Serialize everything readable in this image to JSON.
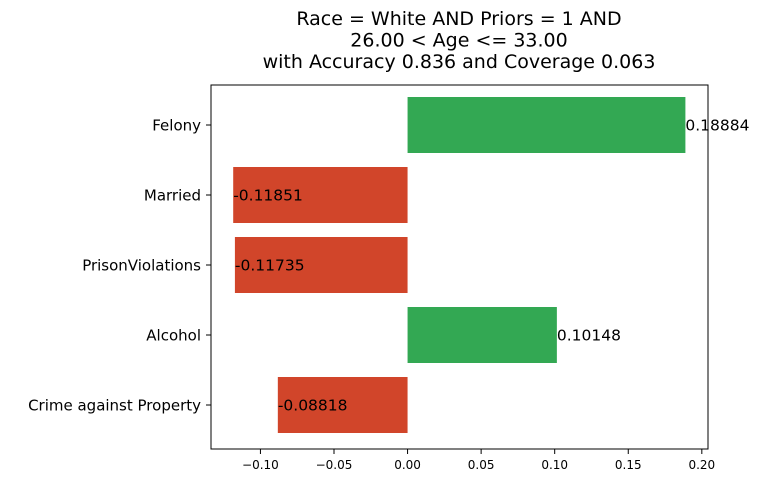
{
  "chart_data": {
    "type": "bar",
    "orientation": "horizontal",
    "title_lines": [
      "Race = White AND Priors = 1 AND",
      "26.00 < Age <= 33.00",
      "with Accuracy 0.836 and Coverage 0.063"
    ],
    "categories": [
      "Felony",
      "Married",
      "PrisonViolations",
      "Alcohol",
      "Crime against Property"
    ],
    "values": [
      0.18884,
      -0.11851,
      -0.11735,
      0.10148,
      -0.08818
    ],
    "value_labels": [
      "0.18884",
      "-0.11851",
      "-0.11735",
      "0.10148",
      "-0.08818"
    ],
    "x_ticks": [
      -0.1,
      -0.05,
      0.0,
      0.05,
      0.1,
      0.15,
      0.2
    ],
    "x_tick_labels": [
      "−0.10",
      "−0.05",
      "0.00",
      "0.05",
      "0.10",
      "0.15",
      "0.20"
    ],
    "xlim": [
      -0.1336,
      0.2042
    ],
    "grid": false,
    "colors": {
      "positive": "#33a853",
      "negative": "#d1452a"
    }
  }
}
